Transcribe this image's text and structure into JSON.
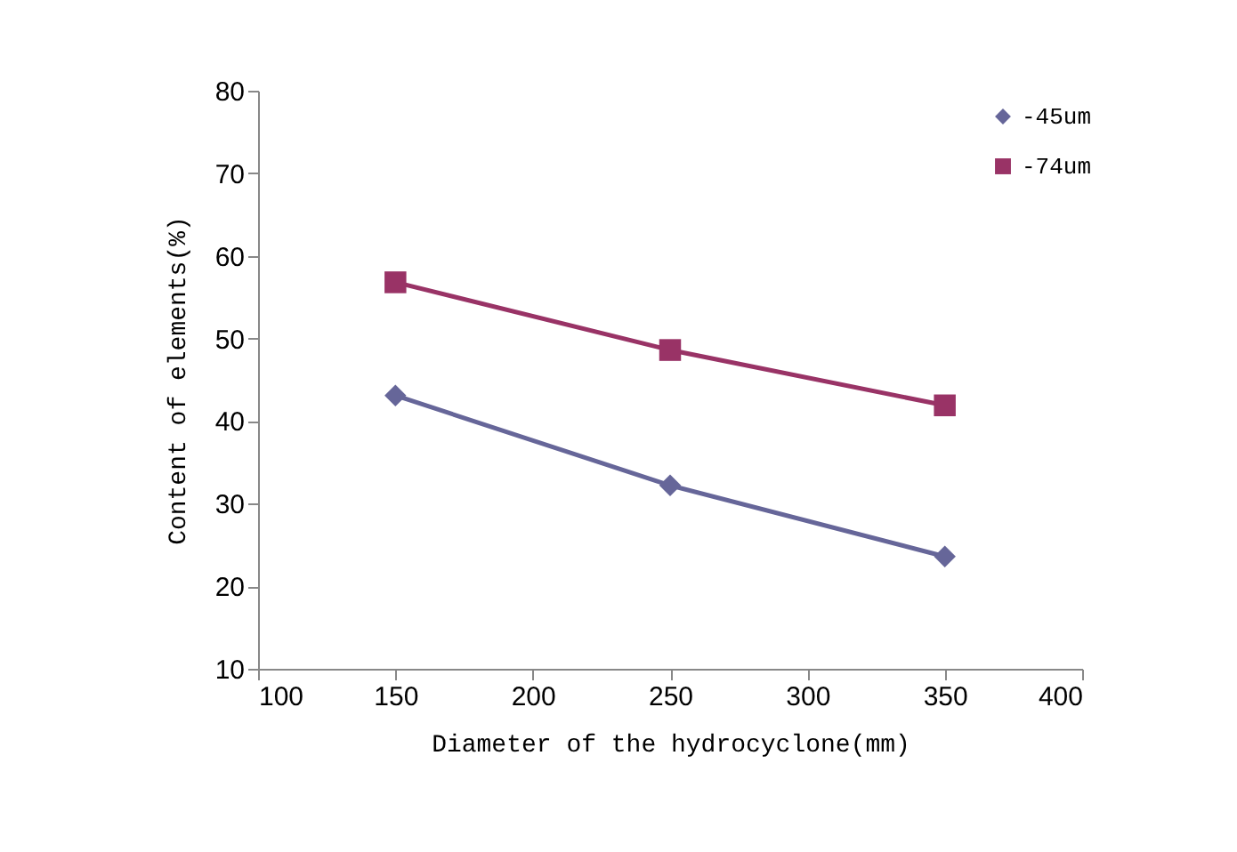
{
  "chart_data": {
    "type": "line",
    "xlabel": "Diameter of the hydrocyclone(mm)",
    "ylabel": "Content of elements(%)",
    "x": [
      150,
      250,
      350
    ],
    "series": [
      {
        "name": "-45um",
        "color": "#666699",
        "marker": "diamond",
        "values": [
          43.1,
          32.2,
          23.6
        ]
      },
      {
        "name": "-74um",
        "color": "#993366",
        "marker": "square",
        "values": [
          56.8,
          48.6,
          41.9
        ]
      }
    ],
    "xlim": [
      100,
      400
    ],
    "xticks": [
      100,
      150,
      200,
      250,
      300,
      350,
      400
    ],
    "ylim": [
      10,
      80
    ],
    "yticks": [
      10,
      20,
      30,
      40,
      50,
      60,
      70,
      80
    ],
    "legend": "top right",
    "grid": false
  }
}
